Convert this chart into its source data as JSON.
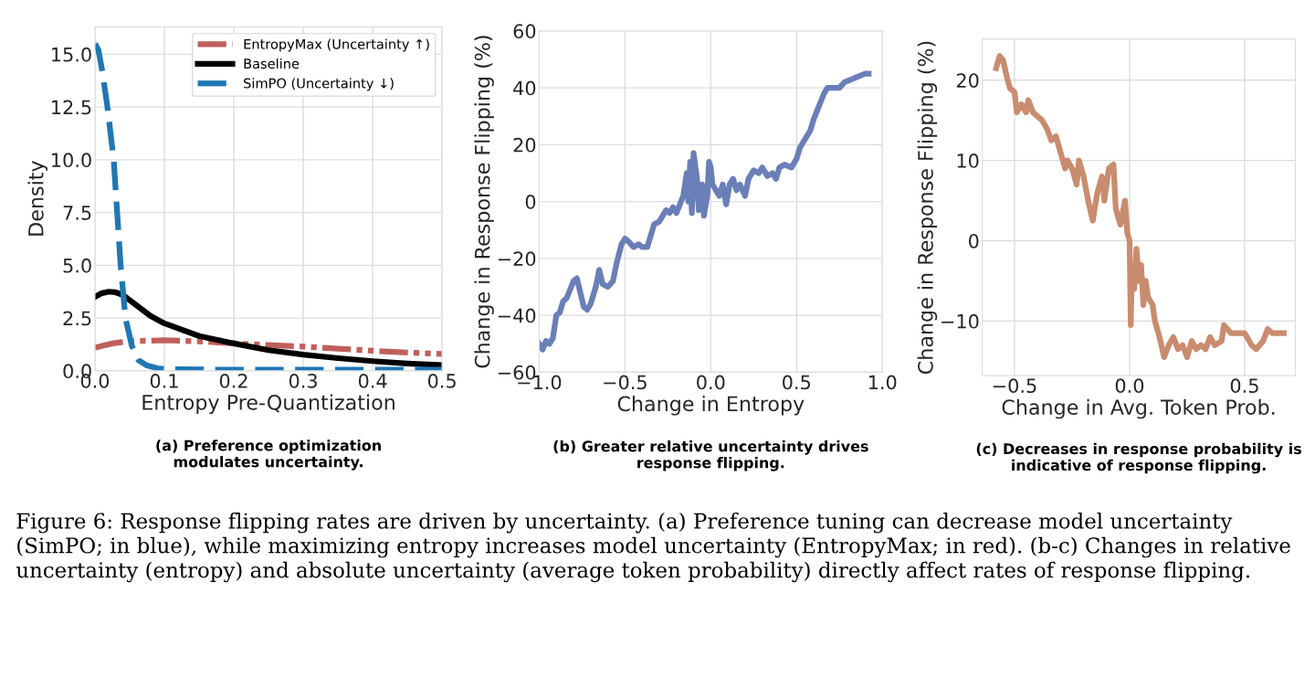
{
  "chart_data": [
    {
      "type": "line",
      "title": "(a) Preference optimization\nmodulates uncertainty.",
      "xlabel": "Entropy Pre-Quantization",
      "ylabel": "Density",
      "xlim": [
        0,
        0.5
      ],
      "ylim": [
        0,
        16.3
      ],
      "xticks": [
        {
          "value": 0,
          "label": "0.0"
        },
        0.1,
        0.2,
        0.3,
        0.4,
        0.5
      ],
      "yticks": [
        {
          "value": 0,
          "label": "0.0"
        },
        2.5,
        {
          "value": 5,
          "label": "5.0"
        },
        7.5,
        {
          "value": 10,
          "label": "10.0"
        },
        12.5,
        {
          "value": 15,
          "label": "15.0"
        }
      ],
      "grid": true,
      "legend": "top right",
      "series": [
        {
          "name": "EntropyMax (Uncertainty ↑)",
          "color": "#c0605c",
          "line_style": "dashdot",
          "x": [
            0,
            0.025,
            0.05,
            0.1,
            0.15,
            0.2,
            0.25,
            0.3,
            0.35,
            0.4,
            0.45,
            0.5
          ],
          "values": [
            1.1,
            1.3,
            1.4,
            1.45,
            1.4,
            1.3,
            1.22,
            1.15,
            1.05,
            0.95,
            0.87,
            0.8
          ]
        },
        {
          "name": "Baseline",
          "color": "#000000",
          "line_style": "solid",
          "x": [
            0,
            0.01,
            0.02,
            0.03,
            0.04,
            0.06,
            0.08,
            0.1,
            0.15,
            0.2,
            0.25,
            0.3,
            0.35,
            0.4,
            0.45,
            0.5
          ],
          "values": [
            3.5,
            3.68,
            3.75,
            3.72,
            3.6,
            3.1,
            2.6,
            2.25,
            1.65,
            1.3,
            0.98,
            0.77,
            0.6,
            0.46,
            0.35,
            0.27
          ]
        },
        {
          "name": "SimPO (Uncertainty ↓)",
          "color": "#1f77b4",
          "line_style": "dashed",
          "x": [
            0,
            0.005,
            0.01,
            0.018,
            0.027,
            0.032,
            0.037,
            0.044,
            0.053,
            0.063,
            0.075,
            0.09,
            0.1,
            0.2,
            0.3,
            0.4,
            0.5
          ],
          "values": [
            15.5,
            15.2,
            14.3,
            12.5,
            10,
            7.5,
            5,
            2.5,
            1.2,
            0.5,
            0.25,
            0.12,
            0.08,
            0.05,
            0.05,
            0.05,
            0.05
          ]
        }
      ]
    },
    {
      "type": "line",
      "title": "(b) Greater relative uncertainty drives\nresponse flipping.",
      "xlabel": "Change in Entropy",
      "ylabel": "Change in Response Flipping (%)",
      "xlim": [
        -1,
        1
      ],
      "ylim": [
        -60,
        60
      ],
      "xticks": [
        {
          "value": -1,
          "label": "−1.0"
        },
        {
          "value": -0.5,
          "label": "−0.5"
        },
        {
          "value": 0,
          "label": "0.0"
        },
        0.5,
        {
          "value": 1,
          "label": "1.0"
        }
      ],
      "yticks": [
        {
          "value": -60,
          "label": "−60"
        },
        {
          "value": -40,
          "label": "−40"
        },
        {
          "value": -20,
          "label": "−20"
        },
        0,
        20,
        40,
        60
      ],
      "grid": true,
      "series": [
        {
          "color": "#6a7fb8",
          "line_style": "solid",
          "x": [
            -1.0,
            -0.98,
            -0.96,
            -0.94,
            -0.92,
            -0.9,
            -0.88,
            -0.86,
            -0.84,
            -0.82,
            -0.8,
            -0.78,
            -0.76,
            -0.74,
            -0.72,
            -0.7,
            -0.67,
            -0.65,
            -0.63,
            -0.6,
            -0.57,
            -0.55,
            -0.52,
            -0.5,
            -0.48,
            -0.45,
            -0.42,
            -0.4,
            -0.37,
            -0.35,
            -0.33,
            -0.3,
            -0.28,
            -0.26,
            -0.24,
            -0.22,
            -0.2,
            -0.18,
            -0.16,
            -0.14,
            -0.13,
            -0.12,
            -0.11,
            -0.1,
            -0.08,
            -0.07,
            -0.05,
            -0.04,
            -0.02,
            -0.01,
            0.0,
            0.01,
            0.03,
            0.05,
            0.07,
            0.09,
            0.11,
            0.13,
            0.15,
            0.17,
            0.2,
            0.22,
            0.25,
            0.28,
            0.3,
            0.33,
            0.36,
            0.38,
            0.4,
            0.43,
            0.47,
            0.5,
            0.52,
            0.55,
            0.58,
            0.6,
            0.62,
            0.64,
            0.66,
            0.68,
            0.72,
            0.75,
            0.78,
            0.82,
            0.86,
            0.9,
            0.92
          ],
          "values": [
            -50,
            -52,
            -49,
            -50,
            -48,
            -40,
            -39,
            -35,
            -34,
            -31,
            -28,
            -27,
            -32,
            -37,
            -38,
            -36,
            -30,
            -24,
            -29,
            -30,
            -28,
            -22,
            -15,
            -13,
            -14,
            -16,
            -15,
            -16,
            -16,
            -12,
            -8,
            -7,
            -5,
            -3,
            -4,
            -2,
            -4,
            -1,
            2,
            10,
            0,
            14,
            -4,
            17,
            8,
            -3,
            6,
            -5,
            2,
            14,
            12,
            6,
            4,
            2,
            6,
            -1,
            6,
            8,
            4,
            6,
            2,
            8,
            11,
            10,
            12,
            9,
            10,
            8,
            12,
            13,
            12,
            15,
            19,
            22,
            25,
            29,
            32,
            35,
            38,
            40,
            40,
            40,
            42,
            43,
            44,
            45,
            45
          ]
        }
      ]
    },
    {
      "type": "line",
      "title": "(c) Decreases in response probability is\nindicative of response flipping.",
      "xlabel": "Change in Avg. Token Prob.",
      "ylabel": "Change in Response Flipping (%)",
      "xlim": [
        -0.64,
        0.72
      ],
      "ylim": [
        -16.8,
        25.1
      ],
      "xticks": [
        {
          "value": -0.5,
          "label": "−0.5"
        },
        {
          "value": 0,
          "label": "0.0"
        },
        0.5
      ],
      "yticks": [
        {
          "value": -10,
          "label": "−10"
        },
        0,
        10,
        20
      ],
      "grid": true,
      "series": [
        {
          "color": "#c98c6e",
          "line_style": "solid",
          "x": [
            -0.58,
            -0.565,
            -0.55,
            -0.53,
            -0.52,
            -0.5,
            -0.49,
            -0.47,
            -0.45,
            -0.44,
            -0.42,
            -0.4,
            -0.38,
            -0.36,
            -0.34,
            -0.32,
            -0.3,
            -0.28,
            -0.27,
            -0.25,
            -0.23,
            -0.22,
            -0.2,
            -0.18,
            -0.16,
            -0.14,
            -0.12,
            -0.11,
            -0.09,
            -0.07,
            -0.06,
            -0.04,
            -0.02,
            -0.01,
            0.0,
            0.005,
            0.01,
            0.02,
            0.03,
            0.04,
            0.05,
            0.06,
            0.07,
            0.08,
            0.1,
            0.11,
            0.13,
            0.15,
            0.17,
            0.19,
            0.21,
            0.23,
            0.25,
            0.27,
            0.29,
            0.31,
            0.33,
            0.35,
            0.37,
            0.4,
            0.41,
            0.44,
            0.47,
            0.5,
            0.53,
            0.55,
            0.58,
            0.6,
            0.62,
            0.65,
            0.67
          ],
          "values": [
            21.5,
            23,
            22.5,
            20,
            19,
            18.5,
            16,
            17,
            16,
            17.5,
            16,
            15.5,
            15,
            14,
            12.5,
            13,
            11,
            9,
            10,
            9,
            7,
            10,
            8,
            5,
            2.5,
            6,
            8,
            5,
            9,
            9.5,
            4,
            2,
            5,
            1,
            0,
            -10.5,
            -4,
            -6,
            -1,
            -5,
            -3,
            -8,
            -5,
            -7,
            -8,
            -10,
            -12,
            -14.5,
            -13,
            -12,
            -13.5,
            -13,
            -14.5,
            -12.5,
            -13.5,
            -13,
            -13.5,
            -12,
            -13,
            -12.5,
            -10.5,
            -11.5,
            -11.5,
            -11.5,
            -13,
            -13.5,
            -12.5,
            -11,
            -11.5,
            -11.5,
            -11.5
          ]
        }
      ],
      "annotations": [
        "Figure 6: Response flipping rates are driven by uncertainty. (a) Preference tuning can decrease model uncertainty (SimPO; in blue), while maximizing entropy increases model uncertainty (EntropyMax; in red). (b-c) Changes in relative uncertainty (entropy) and absolute uncertainty (average token probability) directly affect rates of response flipping."
      ]
    }
  ]
}
